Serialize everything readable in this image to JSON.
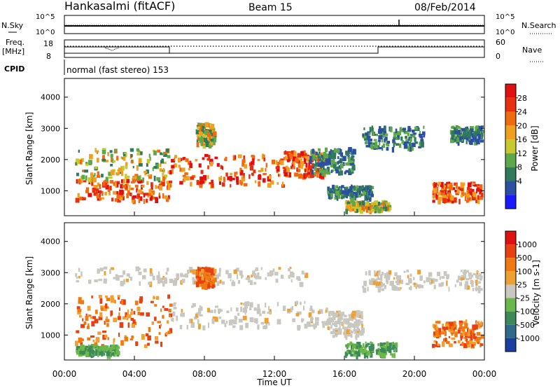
{
  "header": {
    "station": "Hankasalmi (fitACF)",
    "beam": "Beam 15",
    "date": "08/Feb/2014"
  },
  "top_panels": {
    "nsky_label": "N.Sky",
    "nsky_ticks": [
      "10^5",
      "10^0"
    ],
    "nsearch_label": "N.Search",
    "nsearch_ticks": [
      "10^5",
      "10^0"
    ],
    "freq_label": "Freq.",
    "freq_unit": "[MHz]",
    "freq_ticks": [
      "18",
      "8"
    ],
    "nave_label": "Nave",
    "nave_ticks": [
      "60",
      "0"
    ],
    "cpid_label": "CPID",
    "cpid_text": "normal (fast stereo) 153"
  },
  "chart_data": [
    {
      "type": "heatmap",
      "name": "Power",
      "ylabel": "Slant Range [km]",
      "xlabel": "Time UT",
      "ylim": [
        200,
        4600
      ],
      "yticks": [
        "1000",
        "2000",
        "3000",
        "4000"
      ],
      "xticks": [
        "00:00",
        "04:00",
        "08:00",
        "12:00",
        "16:00",
        "20:00",
        "00:00"
      ],
      "xlim_hours": [
        0,
        24
      ],
      "colorbar": {
        "label": "Power [dB]",
        "ticks": [
          "4",
          "8",
          "12",
          "16",
          "20",
          "24",
          "28"
        ],
        "colors": [
          "#1a1aff",
          "#2b4fa3",
          "#2f7a5a",
          "#5fa84a",
          "#c7c92f",
          "#f0a020",
          "#f06a10",
          "#e83010",
          "#e01010"
        ]
      },
      "regions": [
        {
          "t0": 0.6,
          "t1": 6.0,
          "r0": 700,
          "r1": 1400,
          "level": "high"
        },
        {
          "t0": 0.6,
          "t1": 6.0,
          "r0": 1400,
          "r1": 2400,
          "level": "mid"
        },
        {
          "t0": 6.0,
          "t1": 12.5,
          "r0": 1200,
          "r1": 2200,
          "level": "high"
        },
        {
          "t0": 12.5,
          "t1": 14.8,
          "r0": 1500,
          "r1": 2300,
          "level": "high"
        },
        {
          "t0": 7.5,
          "t1": 8.5,
          "r0": 2500,
          "r1": 3200,
          "level": "mid"
        },
        {
          "t0": 14.0,
          "t1": 16.5,
          "r0": 1600,
          "r1": 2400,
          "level": "low"
        },
        {
          "t0": 15.0,
          "t1": 17.5,
          "r0": 800,
          "r1": 1200,
          "level": "low"
        },
        {
          "t0": 17.0,
          "t1": 20.5,
          "r0": 2400,
          "r1": 3100,
          "level": "low"
        },
        {
          "t0": 21.0,
          "t1": 23.8,
          "r0": 700,
          "r1": 1300,
          "level": "high"
        },
        {
          "t0": 22.0,
          "t1": 23.8,
          "r0": 2600,
          "r1": 3100,
          "level": "low"
        },
        {
          "t0": 16.0,
          "t1": 18.5,
          "r0": 400,
          "r1": 700,
          "level": "mid"
        }
      ]
    },
    {
      "type": "heatmap",
      "name": "Velocity",
      "ylabel": "Slant Range [km]",
      "xlabel": "Time UT",
      "ylim": [
        200,
        4600
      ],
      "yticks": [
        "1000",
        "2000",
        "3000",
        "4000"
      ],
      "xticks": [
        "00:00",
        "04:00",
        "08:00",
        "12:00",
        "16:00",
        "20:00",
        "00:00"
      ],
      "xlim_hours": [
        0,
        24
      ],
      "colorbar": {
        "label": "Velocity [m s-1]",
        "ticks": [
          "1000",
          "500",
          "100",
          "25",
          "-25",
          "-100",
          "-500",
          "-1000"
        ],
        "colors": [
          "#1a3fa0",
          "#2f6a8a",
          "#3c8a5a",
          "#6ab84a",
          "#c8c8c0",
          "#f0a030",
          "#f07a10",
          "#e84010",
          "#e01010"
        ]
      },
      "regions": [
        {
          "t0": 0.6,
          "t1": 6.0,
          "r0": 700,
          "r1": 2300,
          "level": "neg"
        },
        {
          "t0": 6.0,
          "t1": 15.0,
          "r0": 1300,
          "r1": 2100,
          "level": "gray"
        },
        {
          "t0": 0.6,
          "t1": 14.0,
          "r0": 2700,
          "r1": 3200,
          "level": "gray"
        },
        {
          "t0": 7.5,
          "t1": 8.5,
          "r0": 2600,
          "r1": 3200,
          "level": "neg"
        },
        {
          "t0": 15.0,
          "t1": 17.0,
          "r0": 1000,
          "r1": 1800,
          "level": "gray"
        },
        {
          "t0": 16.0,
          "t1": 19.0,
          "r0": 400,
          "r1": 800,
          "level": "pos"
        },
        {
          "t0": 17.0,
          "t1": 23.8,
          "r0": 2500,
          "r1": 3100,
          "level": "gray"
        },
        {
          "t0": 21.0,
          "t1": 23.8,
          "r0": 700,
          "r1": 1500,
          "level": "neg"
        },
        {
          "t0": 0.6,
          "t1": 3.0,
          "r0": 400,
          "r1": 700,
          "level": "pos"
        }
      ]
    }
  ]
}
